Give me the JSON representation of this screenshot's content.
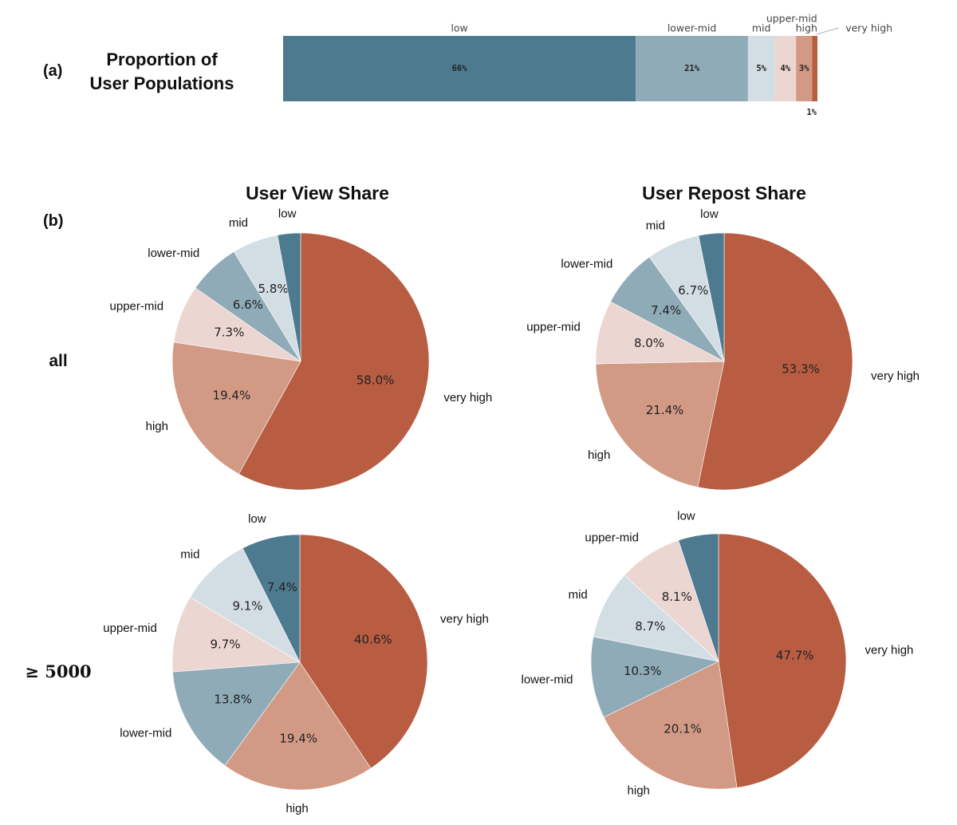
{
  "panel_a": {
    "tag": "(a)",
    "title_line1": "Proportion of",
    "title_line2": "User Populations"
  },
  "panel_b": {
    "tag": "(b)",
    "col_titles": [
      "User View Share",
      "User Repost Share"
    ],
    "row_labels": [
      "all",
      "≥ 5000"
    ]
  },
  "colors": {
    "low": "#4e7a90",
    "lower-mid": "#8fabb8",
    "mid": "#d3dee4",
    "upper-mid": "#ecd6d2",
    "high": "#d29a85",
    "very high": "#b85c42"
  },
  "chart_data": [
    {
      "type": "bar",
      "orientation": "horizontal-stacked",
      "title": "Proportion of User Populations",
      "categories": [
        "low",
        "lower-mid",
        "mid",
        "upper-mid",
        "high",
        "very high"
      ],
      "values": [
        66,
        21,
        5,
        4,
        3,
        1
      ],
      "labels": [
        "66%",
        "21%",
        "5%",
        "4%",
        "3%",
        "1%"
      ],
      "xlim": [
        0,
        100
      ]
    },
    {
      "type": "pie",
      "title": "User View Share",
      "subset": "all",
      "categories": [
        "low",
        "mid",
        "lower-mid",
        "upper-mid",
        "high",
        "very high"
      ],
      "slice_order": [
        "very high",
        "high",
        "upper-mid",
        "lower-mid",
        "mid",
        "low"
      ],
      "values": {
        "very high": 58.0,
        "high": 19.4,
        "upper-mid": 7.3,
        "lower-mid": 6.6,
        "mid": 5.8,
        "low": 2.9
      },
      "labels": {
        "very high": "58.0%",
        "high": "19.4%",
        "upper-mid": "7.3%",
        "lower-mid": "6.6%",
        "mid": "5.8%"
      }
    },
    {
      "type": "pie",
      "title": "User Repost Share",
      "subset": "all",
      "categories": [
        "low",
        "mid",
        "lower-mid",
        "upper-mid",
        "high",
        "very high"
      ],
      "slice_order": [
        "very high",
        "high",
        "upper-mid",
        "lower-mid",
        "mid",
        "low"
      ],
      "values": {
        "very high": 53.3,
        "high": 21.4,
        "upper-mid": 8.0,
        "lower-mid": 7.4,
        "mid": 6.7,
        "low": 3.2
      },
      "labels": {
        "very high": "53.3%",
        "high": "21.4%",
        "upper-mid": "8.0%",
        "lower-mid": "7.4%",
        "mid": "6.7%"
      }
    },
    {
      "type": "pie",
      "title": "User View Share",
      "subset": "≥ 5000",
      "categories": [
        "low",
        "mid",
        "upper-mid",
        "lower-mid",
        "high",
        "very high"
      ],
      "slice_order": [
        "very high",
        "high",
        "lower-mid",
        "upper-mid",
        "mid",
        "low"
      ],
      "values": {
        "very high": 40.6,
        "high": 19.4,
        "lower-mid": 13.8,
        "upper-mid": 9.7,
        "mid": 9.1,
        "low": 7.4
      },
      "labels": {
        "very high": "40.6%",
        "high": "19.4%",
        "lower-mid": "13.8%",
        "upper-mid": "9.7%",
        "mid": "9.1%",
        "low": "7.4%"
      }
    },
    {
      "type": "pie",
      "title": "User Repost Share",
      "subset": "≥ 5000",
      "categories": [
        "low",
        "upper-mid",
        "mid",
        "lower-mid",
        "high",
        "very high"
      ],
      "slice_order": [
        "very high",
        "high",
        "lower-mid",
        "mid",
        "upper-mid",
        "low"
      ],
      "values": {
        "very high": 47.7,
        "high": 20.1,
        "lower-mid": 10.3,
        "mid": 8.7,
        "upper-mid": 8.1,
        "low": 5.1
      },
      "labels": {
        "very high": "47.7%",
        "high": "20.1%",
        "lower-mid": "10.3%",
        "mid": "8.7%",
        "upper-mid": "8.1%"
      }
    }
  ]
}
